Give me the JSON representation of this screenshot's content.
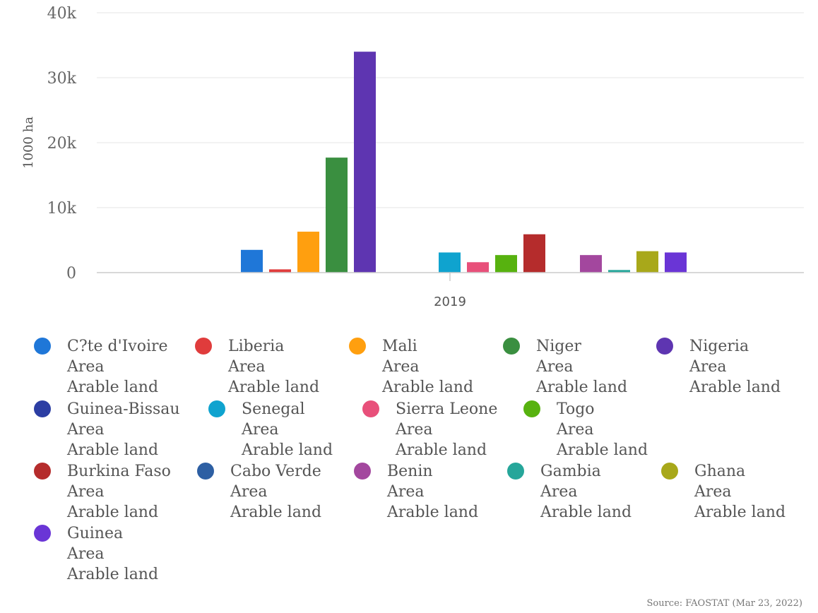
{
  "chart_data": {
    "type": "bar",
    "title": "",
    "xlabel": "",
    "ylabel": "1000 ha",
    "ylim": [
      0,
      40000
    ],
    "yticks": [
      0,
      10000,
      20000,
      30000,
      40000
    ],
    "ytick_labels": [
      "0",
      "10k",
      "20k",
      "30k",
      "40k"
    ],
    "categories": [
      "2019"
    ],
    "series": [
      {
        "name": "C?te d'Ivoire",
        "element": "Area",
        "item": "Arable land",
        "color": "#1f77d8",
        "values": [
          3500
        ]
      },
      {
        "name": "Liberia",
        "element": "Area",
        "item": "Arable land",
        "color": "#e03c3c",
        "values": [
          500
        ]
      },
      {
        "name": "Mali",
        "element": "Area",
        "item": "Arable land",
        "color": "#ff9f0f",
        "values": [
          6300
        ]
      },
      {
        "name": "Niger",
        "element": "Area",
        "item": "Arable land",
        "color": "#3a8f40",
        "values": [
          17700
        ]
      },
      {
        "name": "Nigeria",
        "element": "Area",
        "item": "Arable land",
        "color": "#5e35b1",
        "values": [
          34000
        ]
      },
      {
        "name": "Guinea-Bissau",
        "element": "Area",
        "item": "Arable land",
        "color": "#2c3ea3",
        "values": [
          0
        ]
      },
      {
        "name": "Senegal",
        "element": "Area",
        "item": "Arable land",
        "color": "#0fa3cf",
        "values": [
          3100
        ]
      },
      {
        "name": "Sierra Leone",
        "element": "Area",
        "item": "Arable land",
        "color": "#e8507a",
        "values": [
          1600
        ]
      },
      {
        "name": "Togo",
        "element": "Area",
        "item": "Arable land",
        "color": "#57b20f",
        "values": [
          2700
        ]
      },
      {
        "name": "Burkina Faso",
        "element": "Area",
        "item": "Arable land",
        "color": "#b52c2c",
        "values": [
          5900
        ]
      },
      {
        "name": "Cabo Verde",
        "element": "Area",
        "item": "Arable land",
        "color": "#2d5fa3",
        "values": [
          0
        ]
      },
      {
        "name": "Benin",
        "element": "Area",
        "item": "Arable land",
        "color": "#a3479e",
        "values": [
          2700
        ]
      },
      {
        "name": "Gambia",
        "element": "Area",
        "item": "Arable land",
        "color": "#26a69a",
        "values": [
          400
        ]
      },
      {
        "name": "Ghana",
        "element": "Area",
        "item": "Arable land",
        "color": "#a8a81a",
        "values": [
          3300
        ]
      },
      {
        "name": "Guinea",
        "element": "Area",
        "item": "Arable land",
        "color": "#6a35d6",
        "values": [
          3100
        ]
      }
    ],
    "legend_position": "bottom",
    "grid": true
  },
  "source": "Source: FAOSTAT (Mar 23, 2022)"
}
